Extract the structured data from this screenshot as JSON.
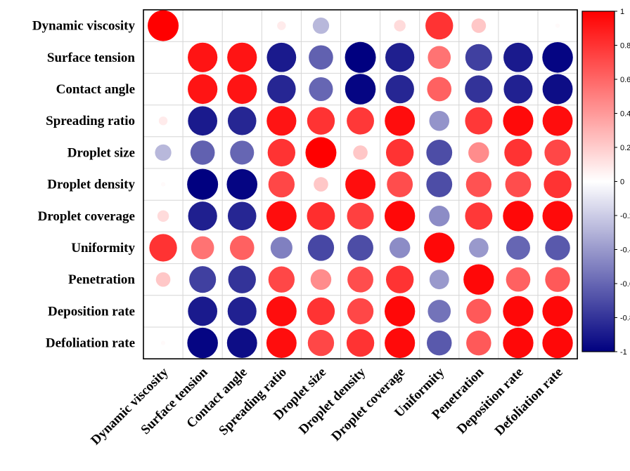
{
  "chart_data": {
    "type": "heatmap",
    "title": "",
    "variables": [
      "Dynamic viscosity",
      "Surface tension",
      "Contact angle",
      "Spreading ratio",
      "Droplet size",
      "Droplet density",
      "Droplet coverage",
      "Uniformity",
      "Penetration",
      "Deposition rate",
      "Defoliation rate"
    ],
    "matrix": [
      [
        1.0,
        null,
        null,
        0.08,
        -0.28,
        null,
        0.14,
        0.8,
        0.22,
        null,
        0.02
      ],
      [
        null,
        0.92,
        0.92,
        -0.9,
        -0.62,
        -1.0,
        -0.88,
        0.55,
        -0.75,
        -0.9,
        -0.98
      ],
      [
        null,
        0.92,
        0.92,
        -0.85,
        -0.6,
        -0.98,
        -0.85,
        0.62,
        -0.8,
        -0.87,
        -0.95
      ],
      [
        0.08,
        -0.9,
        -0.85,
        0.92,
        0.8,
        0.78,
        0.95,
        -0.42,
        0.78,
        0.96,
        0.95
      ],
      [
        -0.28,
        -0.62,
        -0.6,
        0.8,
        1.0,
        0.22,
        0.8,
        -0.7,
        0.45,
        0.8,
        0.72
      ],
      [
        0.02,
        -1.0,
        -0.98,
        0.72,
        0.22,
        0.95,
        0.7,
        -0.7,
        0.68,
        0.7,
        0.8
      ],
      [
        0.14,
        -0.88,
        -0.85,
        0.95,
        0.82,
        0.75,
        0.97,
        -0.45,
        0.78,
        0.97,
        0.96
      ],
      [
        0.8,
        0.55,
        0.62,
        -0.5,
        -0.72,
        -0.7,
        -0.45,
        0.97,
        -0.4,
        -0.6,
        -0.65
      ],
      [
        0.22,
        -0.75,
        -0.8,
        0.72,
        0.45,
        0.7,
        0.8,
        -0.4,
        0.97,
        0.62,
        0.65
      ],
      [
        null,
        -0.9,
        -0.87,
        0.95,
        0.8,
        0.72,
        0.97,
        -0.55,
        0.65,
        0.97,
        0.97
      ],
      [
        0.02,
        -0.98,
        -0.95,
        0.95,
        0.72,
        0.8,
        0.96,
        -0.65,
        0.65,
        0.97,
        0.97
      ]
    ],
    "color_scale": {
      "min": -1,
      "max": 1,
      "colors": {
        "negative": "#000080",
        "zero": "#ffffff",
        "positive": "#ff0000"
      },
      "ticks": [
        1,
        0.8,
        0.6,
        0.4,
        0.2,
        0,
        -0.2,
        -0.4,
        -0.6,
        -0.8,
        -1
      ],
      "tick_labels": [
        "1",
        "0.8",
        "0.6",
        "0.4",
        "0.2",
        "0",
        "-0.2",
        "-0.4",
        "-0.6",
        "-0.8",
        "-1"
      ]
    },
    "legend_placement": "right",
    "grid": true
  }
}
